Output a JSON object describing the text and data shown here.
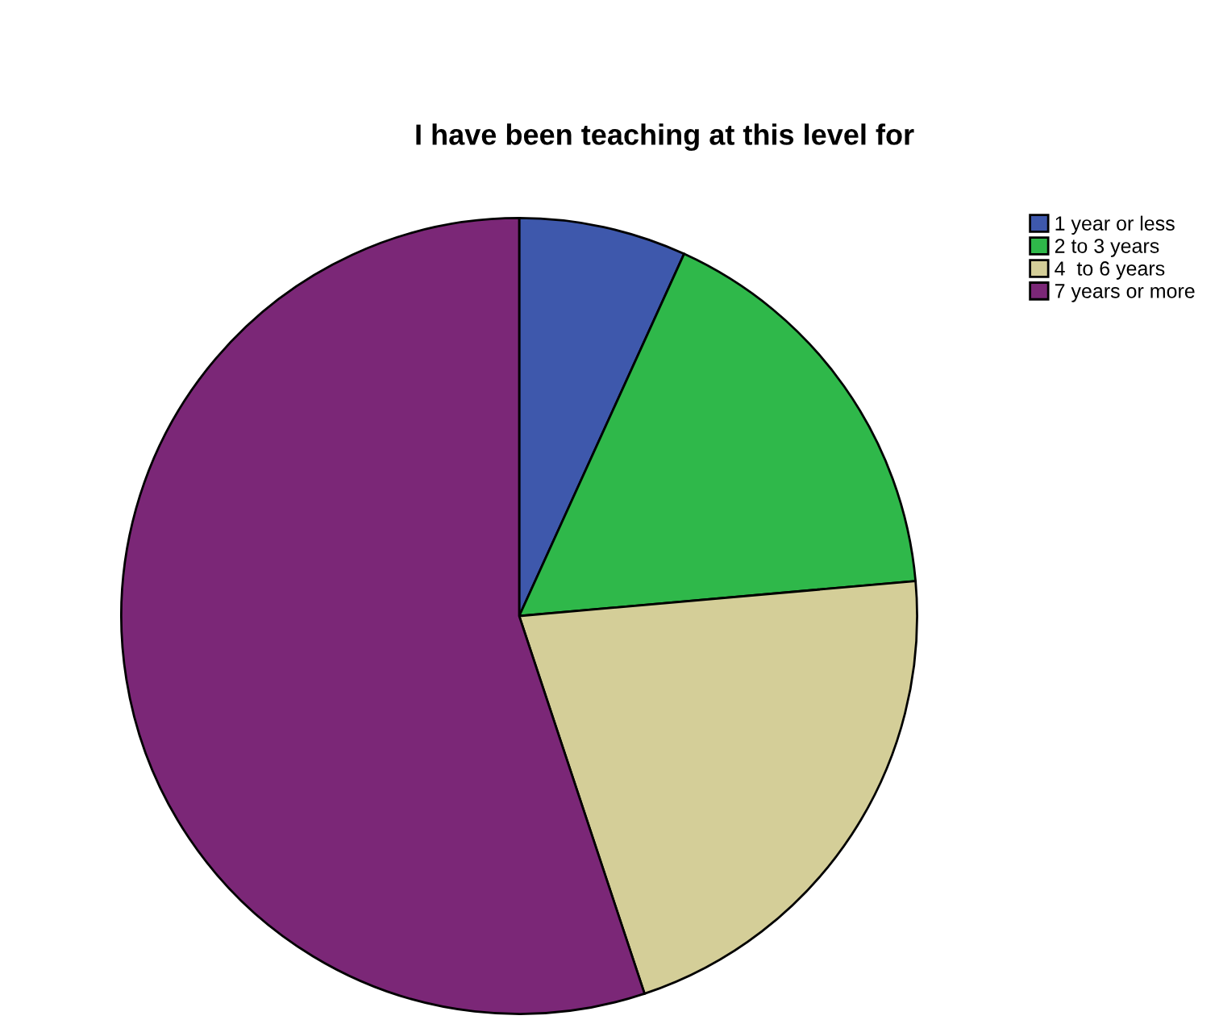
{
  "chart_data": {
    "type": "pie",
    "title": "I have been teaching at this level for",
    "categories": [
      "1 year or less",
      "2 to 3 years",
      "4  to 6 years",
      "7 years or more"
    ],
    "values": [
      6.8,
      16.8,
      21.3,
      55.1
    ],
    "colors": [
      "#3e58ac",
      "#2fb84a",
      "#d4ce98",
      "#7b2777"
    ],
    "legend": "top right"
  }
}
